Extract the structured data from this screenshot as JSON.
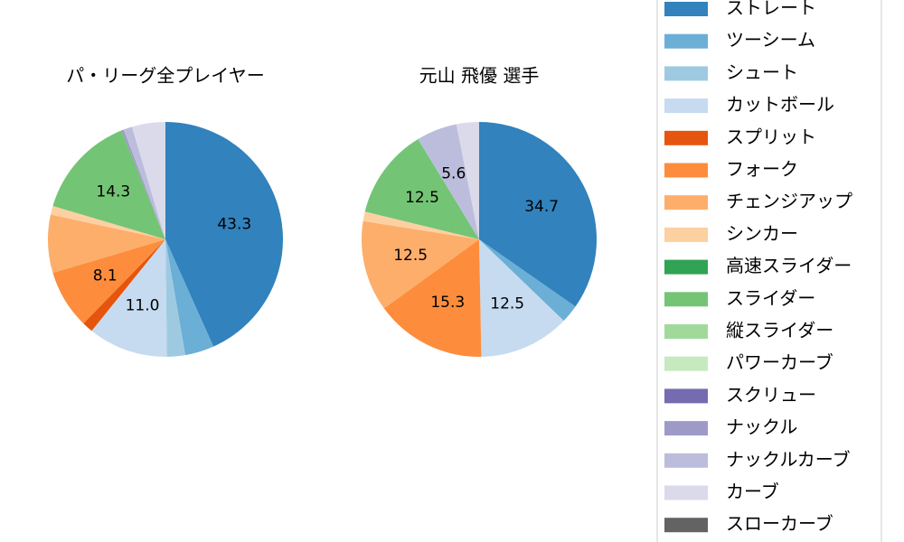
{
  "chart_data": [
    {
      "type": "pie",
      "title": "パ・リーグ全プレイヤー",
      "values": [
        43.3,
        4.0,
        2.5,
        11.0,
        1.5,
        8.1,
        8.0,
        1.2,
        0,
        14.3,
        0,
        0,
        0,
        0.3,
        1.2,
        4.6,
        0
      ],
      "value_labels": [
        "43.3",
        null,
        null,
        "11.0",
        null,
        "8.1",
        null,
        null,
        null,
        "14.3",
        null,
        null,
        null,
        null,
        null,
        null,
        null
      ]
    },
    {
      "type": "pie",
      "title": "元山 飛優  選手",
      "values": [
        34.7,
        2.5,
        0,
        12.5,
        0,
        15.3,
        12.5,
        1.3,
        0,
        12.5,
        0,
        0,
        0,
        0,
        5.6,
        3.1,
        0
      ],
      "value_labels": [
        "34.7",
        null,
        null,
        "12.5",
        null,
        "15.3",
        "12.5",
        null,
        null,
        "12.5",
        null,
        null,
        null,
        null,
        "5.6",
        null,
        null
      ]
    }
  ],
  "legend": {
    "labels": [
      "ストレート",
      "ツーシーム",
      "シュート",
      "カットボール",
      "スプリット",
      "フォーク",
      "チェンジアップ",
      "シンカー",
      "高速スライダー",
      "スライダー",
      "縦スライダー",
      "パワーカーブ",
      "スクリュー",
      "ナックル",
      "ナックルカーブ",
      "カーブ",
      "スローカーブ"
    ],
    "colors": [
      "#3182bd",
      "#6baed6",
      "#9ecae1",
      "#c6dbef",
      "#e6550d",
      "#fd8d3c",
      "#fdae6b",
      "#fdd0a2",
      "#31a354",
      "#74c476",
      "#a1d99b",
      "#c7e9c0",
      "#756bb1",
      "#9e9ac8",
      "#bcbddc",
      "#dadaeb",
      "#636363"
    ]
  }
}
